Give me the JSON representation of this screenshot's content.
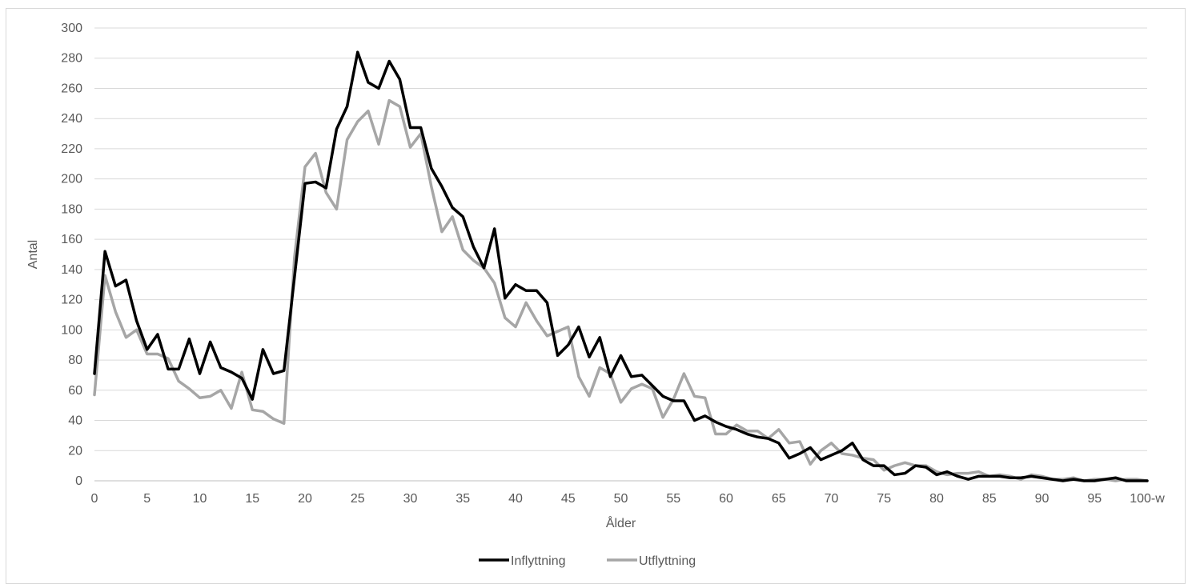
{
  "chart_data": {
    "type": "line",
    "xlabel": "Ålder",
    "ylabel": "Antal",
    "ylim": [
      0,
      300
    ],
    "y_ticks": [
      "0",
      "20",
      "40",
      "60",
      "80",
      "100",
      "120",
      "140",
      "160",
      "180",
      "200",
      "220",
      "240",
      "260",
      "280",
      "300"
    ],
    "x_tick_labels": [
      {
        "age": 0,
        "label": "0"
      },
      {
        "age": 5,
        "label": "5"
      },
      {
        "age": 10,
        "label": "10"
      },
      {
        "age": 15,
        "label": "15"
      },
      {
        "age": 20,
        "label": "20"
      },
      {
        "age": 25,
        "label": "25"
      },
      {
        "age": 30,
        "label": "30"
      },
      {
        "age": 35,
        "label": "35"
      },
      {
        "age": 40,
        "label": "40"
      },
      {
        "age": 45,
        "label": "45"
      },
      {
        "age": 50,
        "label": "50"
      },
      {
        "age": 55,
        "label": "55"
      },
      {
        "age": 60,
        "label": "60"
      },
      {
        "age": 65,
        "label": "65"
      },
      {
        "age": 70,
        "label": "70"
      },
      {
        "age": 75,
        "label": "75"
      },
      {
        "age": 80,
        "label": "80"
      },
      {
        "age": 85,
        "label": "85"
      },
      {
        "age": 90,
        "label": "90"
      },
      {
        "age": 95,
        "label": "95"
      },
      {
        "age": 100,
        "label": "100-w"
      }
    ],
    "grid": "horizontal",
    "legend_position": "bottom",
    "series": [
      {
        "name": "Inflyttning",
        "color": "#000000",
        "values": [
          71,
          152,
          129,
          133,
          106,
          87,
          97,
          74,
          74,
          94,
          71,
          92,
          75,
          72,
          68,
          54,
          87,
          71,
          73,
          135,
          197,
          198,
          194,
          233,
          248,
          284,
          264,
          260,
          278,
          266,
          234,
          234,
          207,
          195,
          181,
          175,
          155,
          141,
          167,
          121,
          130,
          126,
          126,
          118,
          83,
          90,
          102,
          82,
          95,
          69,
          83,
          69,
          70,
          63,
          56,
          53,
          53,
          40,
          43,
          39,
          36,
          34,
          31,
          29,
          28,
          25,
          15,
          18,
          22,
          14,
          17,
          20,
          25,
          14,
          10,
          10,
          4,
          5,
          10,
          9,
          4,
          6,
          3,
          1,
          3,
          3,
          3,
          2,
          2,
          3,
          2,
          1,
          0,
          1,
          0,
          0,
          1,
          2,
          0,
          0,
          0
        ]
      },
      {
        "name": "Utflyttning",
        "color": "#a6a6a6",
        "values": [
          57,
          136,
          112,
          95,
          100,
          84,
          84,
          81,
          66,
          61,
          55,
          56,
          60,
          48,
          72,
          47,
          46,
          41,
          38,
          148,
          208,
          217,
          191,
          180,
          226,
          238,
          245,
          223,
          252,
          248,
          221,
          230,
          195,
          165,
          175,
          153,
          146,
          141,
          131,
          108,
          102,
          118,
          106,
          96,
          99,
          102,
          69,
          56,
          75,
          71,
          52,
          61,
          64,
          61,
          42,
          54,
          71,
          56,
          55,
          31,
          31,
          37,
          33,
          33,
          28,
          34,
          25,
          26,
          11,
          20,
          25,
          18,
          17,
          15,
          14,
          7,
          10,
          12,
          10,
          10,
          6,
          4,
          5,
          5,
          6,
          3,
          4,
          3,
          1,
          4,
          3,
          1,
          1,
          2,
          0,
          1,
          1,
          0,
          1,
          1,
          0
        ]
      }
    ]
  }
}
